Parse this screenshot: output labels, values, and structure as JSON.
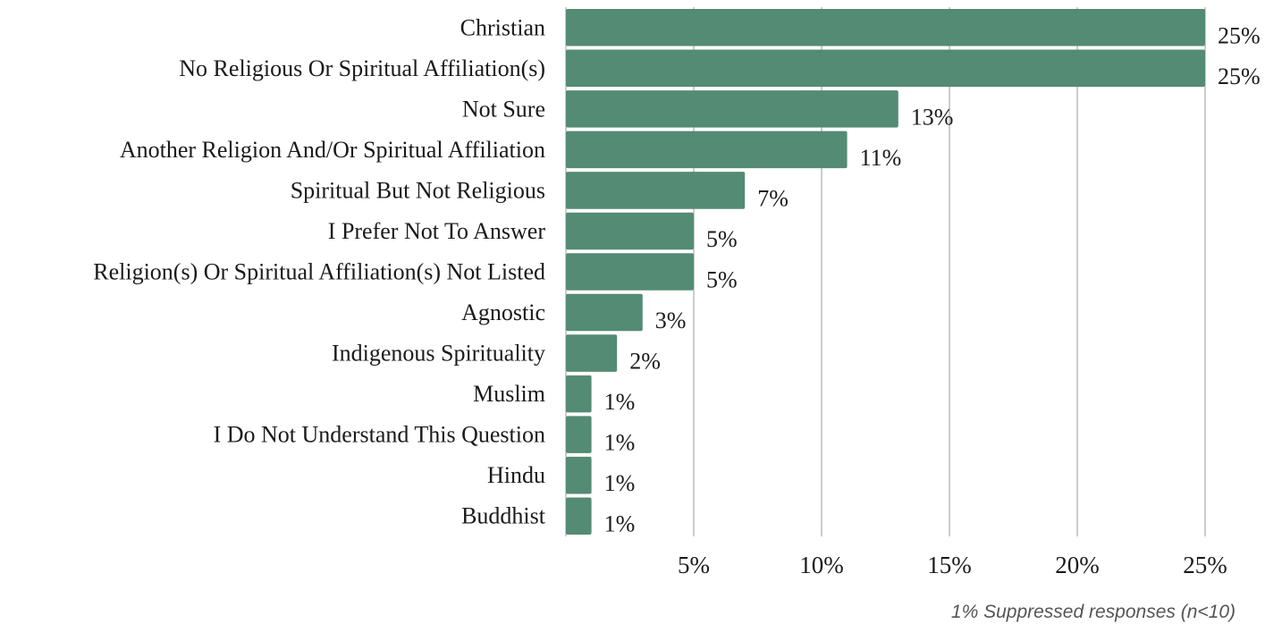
{
  "chart_data": {
    "type": "bar",
    "orientation": "horizontal",
    "categories": [
      "Christian",
      "No Religious Or Spiritual Affiliation(s)",
      "Not Sure",
      "Another Religion And/Or Spiritual Affiliation",
      "Spiritual But Not Religious",
      "I Prefer Not To Answer",
      "Religion(s) Or Spiritual Affiliation(s) Not Listed",
      "Agnostic",
      "Indigenous Spirituality",
      "Muslim",
      "I Do Not Understand This Question",
      "Hindu",
      "Buddhist"
    ],
    "values": [
      25,
      25,
      13,
      11,
      7,
      5,
      5,
      3,
      2,
      1,
      1,
      1,
      1
    ],
    "value_labels": [
      "25%",
      "25%",
      "13%",
      "11%",
      "7%",
      "5%",
      "5%",
      "3%",
      "2%",
      "1%",
      "1%",
      "1%",
      "1%"
    ],
    "xlim": [
      0,
      25
    ],
    "xticks": [
      5,
      10,
      15,
      20,
      25
    ],
    "xtick_labels": [
      "5%",
      "10%",
      "15%",
      "20%",
      "25%"
    ],
    "grid": "vertical",
    "bar_color": "#548b74",
    "grid_color": "#cccccc",
    "title": "",
    "xlabel": "",
    "ylabel": ""
  },
  "footnote": "1% Suppressed responses (n<10)"
}
